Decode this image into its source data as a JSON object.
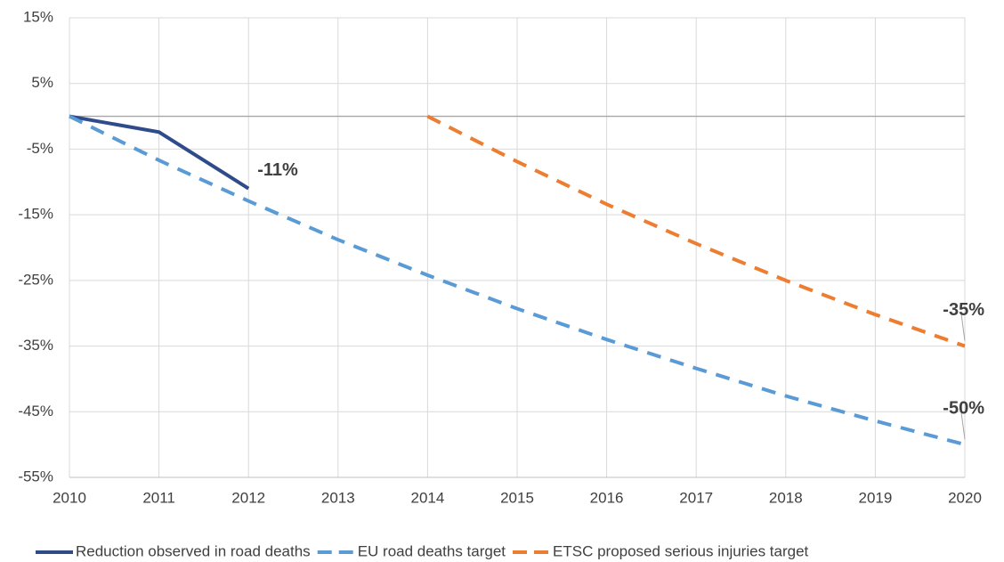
{
  "chart_data": {
    "type": "line",
    "x": [
      2010,
      2011,
      2012,
      2013,
      2014,
      2015,
      2016,
      2017,
      2018,
      2019,
      2020
    ],
    "xlim": [
      2010,
      2020
    ],
    "xticks": [
      2010,
      2011,
      2012,
      2013,
      2014,
      2015,
      2016,
      2017,
      2018,
      2019,
      2020
    ],
    "ylim": [
      -55,
      15
    ],
    "yticks": [
      {
        "value": 15,
        "label": "15%"
      },
      {
        "value": 5,
        "label": "5%"
      },
      {
        "value": -5,
        "label": "-5%"
      },
      {
        "value": -15,
        "label": "-15%"
      },
      {
        "value": -25,
        "label": "-25%"
      },
      {
        "value": -35,
        "label": "-35%"
      },
      {
        "value": -45,
        "label": "-45%"
      },
      {
        "value": -55,
        "label": "-55%"
      }
    ],
    "grid": true,
    "legend": "bottom",
    "series": [
      {
        "name": "Reduction observed in road deaths",
        "color": "#2f4b8a",
        "dash": false,
        "values": [
          0,
          -2.4,
          -11,
          null,
          null,
          null,
          null,
          null,
          null,
          null,
          null
        ],
        "value_labels": [
          null,
          null,
          "-11%",
          null,
          null,
          null,
          null,
          null,
          null,
          null,
          null
        ]
      },
      {
        "name": "EU road deaths target",
        "color": "#5b9bd5",
        "dash": true,
        "values": [
          0,
          -6.7,
          -12.9,
          -18.8,
          -24.2,
          -29.3,
          -34.0,
          -38.4,
          -42.6,
          -46.4,
          -50
        ],
        "value_labels": [
          null,
          null,
          null,
          null,
          null,
          null,
          null,
          null,
          null,
          null,
          "-50%"
        ]
      },
      {
        "name": "ETSC proposed serious injuries target",
        "color": "#ed7d31",
        "dash": true,
        "values": [
          null,
          null,
          null,
          null,
          0,
          -6.9,
          -13.4,
          -19.4,
          -25.0,
          -30.2,
          -35
        ],
        "value_labels": [
          null,
          null,
          null,
          null,
          null,
          null,
          null,
          null,
          null,
          null,
          "-35%"
        ]
      }
    ]
  }
}
